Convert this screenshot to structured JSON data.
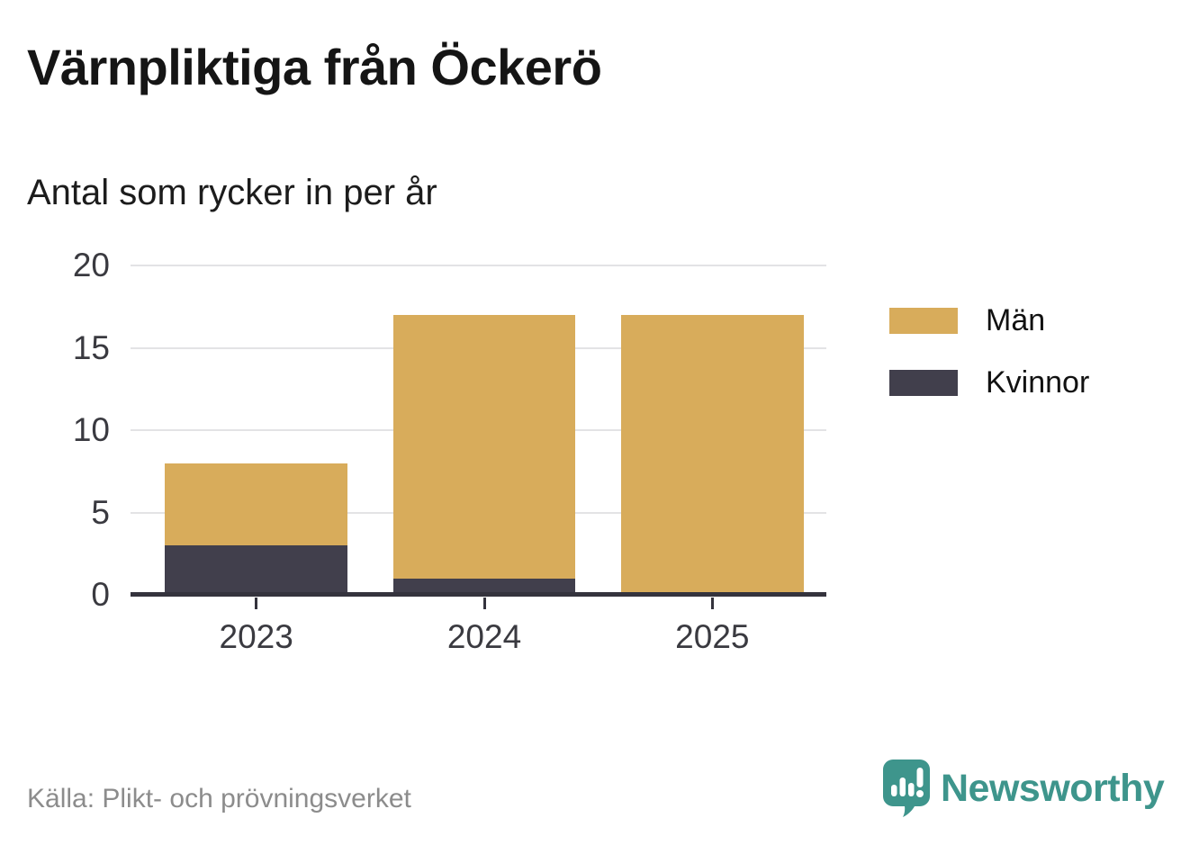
{
  "header": {
    "title": "Värnpliktiga från Öckerö",
    "subtitle": "Antal som rycker in per år"
  },
  "chart_data": {
    "type": "bar",
    "stacked": true,
    "title": "Värnpliktiga från Öckerö",
    "subtitle": "Antal som rycker in per år",
    "categories": [
      "2023",
      "2024",
      "2025"
    ],
    "series": [
      {
        "name": "Män",
        "color": "#D8AC5B",
        "values": [
          5,
          16,
          17
        ]
      },
      {
        "name": "Kvinnor",
        "color": "#413F4C",
        "values": [
          3,
          1,
          0
        ]
      }
    ],
    "stack_totals": [
      8,
      17,
      17
    ],
    "ylim": [
      0,
      20
    ],
    "yticks": [
      0,
      5,
      10,
      15,
      20
    ],
    "xlabel": "",
    "ylabel": "",
    "grid": true,
    "legend_position": "right"
  },
  "footer": {
    "source": "Källa: Plikt- och prövningsverket",
    "brand": "Newsworthy"
  },
  "colors": {
    "axis": "#34333D",
    "gridline": "#E3E3E5",
    "brand_teal": "#3E958C",
    "source_text": "#8C8C8C"
  }
}
